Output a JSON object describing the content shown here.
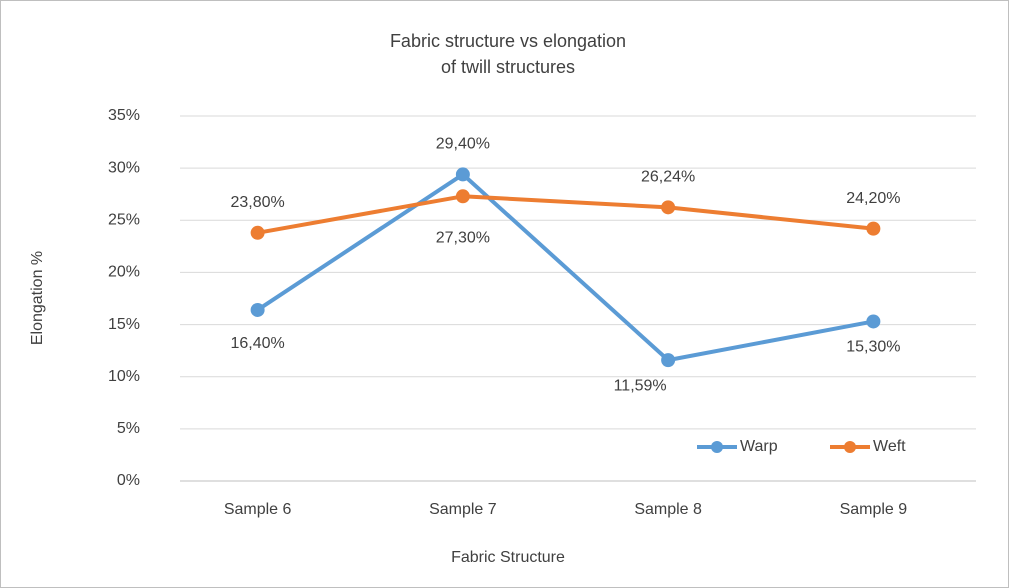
{
  "chart_data": {
    "type": "line",
    "title": [
      "Fabric structure vs elongation",
      "of twill structures"
    ],
    "x_label": "Fabric Structure",
    "y_label": "Elongation %",
    "categories": [
      "Sample 6",
      "Sample 7",
      "Sample 8",
      "Sample 9"
    ],
    "series": [
      {
        "name": "Warp",
        "color": "#5b9bd5",
        "values": [
          16.4,
          29.4,
          11.59,
          15.3
        ],
        "value_labels": [
          "16,40%",
          "29,40%",
          "11,59%",
          "15,30%"
        ]
      },
      {
        "name": "Weft",
        "color": "#ed7d31",
        "values": [
          23.8,
          27.3,
          26.24,
          24.2
        ],
        "value_labels": [
          "23,80%",
          "27,30%",
          "26,24%",
          "24,20%"
        ]
      }
    ],
    "ylim": [
      0,
      35
    ],
    "yticks": [
      {
        "value": 0,
        "label": "0%"
      },
      {
        "value": 5,
        "label": "5%"
      },
      {
        "value": 10,
        "label": "10%"
      },
      {
        "value": 15,
        "label": "15%"
      },
      {
        "value": 20,
        "label": "20%"
      },
      {
        "value": 25,
        "label": "25%"
      },
      {
        "value": 30,
        "label": "30%"
      },
      {
        "value": 35,
        "label": "35%"
      }
    ],
    "grid": true,
    "legend": "lower right"
  }
}
